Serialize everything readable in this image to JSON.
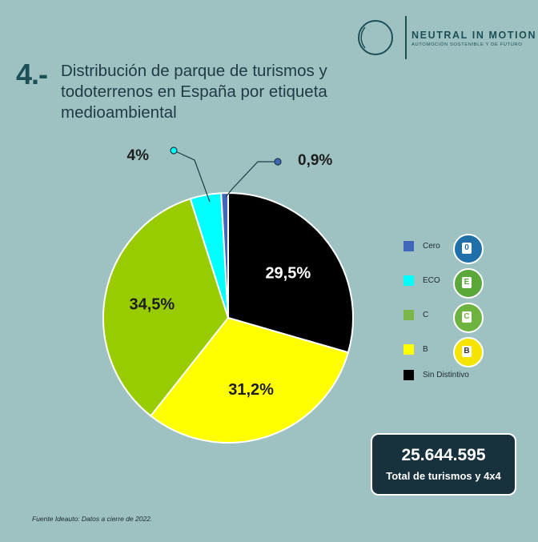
{
  "brand": {
    "name": "NEUTRAL IN MOTION",
    "tagline": "AUTOMOCIÓN SOSTENIBLE Y DE FUTURO"
  },
  "section_number": "4.-",
  "title": "Distribución de parque de turismos y todoterrenos en España por etiqueta medioambiental",
  "chart_data": {
    "type": "pie",
    "start_angle_deg": 0,
    "direction": "clockwise",
    "slices": [
      {
        "label": "Sin Distintivo",
        "value": 29.5,
        "value_label": "29,5%",
        "color": "#000000",
        "label_color": "#ffffff"
      },
      {
        "label": "B",
        "value": 31.2,
        "value_label": "31,2%",
        "color": "#ffff00",
        "label_color": "#1d1d1d"
      },
      {
        "label": "C",
        "value": 34.5,
        "value_label": "34,5%",
        "color": "#99cc00",
        "label_color": "#1d1d1d"
      },
      {
        "label": "ECO",
        "value": 4.0,
        "value_label": "4%",
        "color": "#00ffff",
        "label_color": "#1d1d1d"
      },
      {
        "label": "Cero",
        "value": 0.9,
        "value_label": "0,9%",
        "color": "#3f66b8",
        "label_color": "#1d1d1d"
      }
    ],
    "legend": {
      "placement": "right",
      "items": [
        {
          "label": "Cero",
          "color": "#3f66b8",
          "badge_color": "#1f6fa8",
          "badge_letter": "0"
        },
        {
          "label": "ECO",
          "color": "#00ffff",
          "badge_color": "#5aa83a",
          "badge_letter": "E"
        },
        {
          "label": "C",
          "color": "#7ab648",
          "badge_color": "#6db33f",
          "badge_letter": "C"
        },
        {
          "label": "B",
          "color": "#ffff00",
          "badge_color": "#f5e400",
          "badge_letter": "B"
        },
        {
          "label": "Sin Distintivo",
          "color": "#000000"
        }
      ]
    }
  },
  "total": {
    "value": "25.644.595",
    "label": "Total de turismos y 4x4"
  },
  "source": "Fuente Ideauto: Datos a cierre de 2022."
}
